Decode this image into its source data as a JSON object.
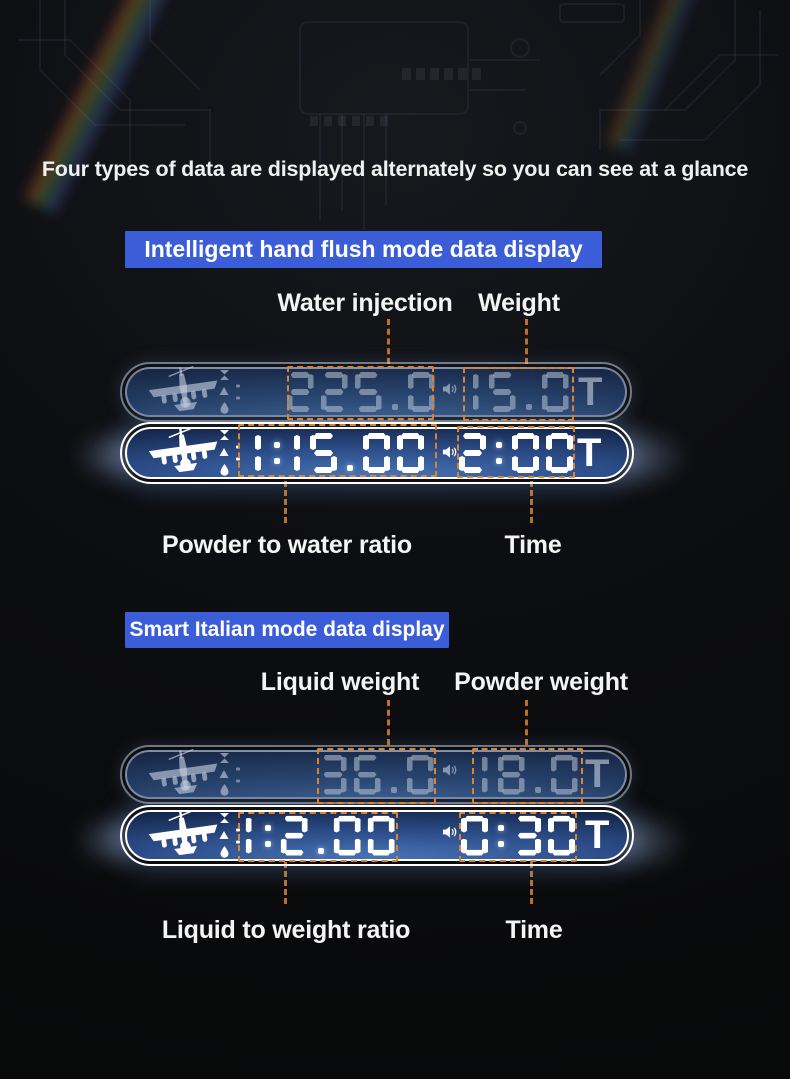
{
  "headline": "Four types of data are displayed alternately so you can see at a glance",
  "sections": [
    {
      "banner": "Intelligent hand flush mode data display",
      "labels_top": [
        {
          "text": "Water injection"
        },
        {
          "text": "Weight"
        }
      ],
      "labels_bottom": [
        {
          "text": "Powder to water ratio"
        },
        {
          "text": "Time"
        }
      ],
      "displays": [
        {
          "state": "dim",
          "left_value": "225.0",
          "right_value": "15.0",
          "unit": "T"
        },
        {
          "state": "bright",
          "left_value": "1:15.00",
          "right_value": "2:00",
          "unit": "T"
        }
      ]
    },
    {
      "banner": "Smart Italian mode data display",
      "labels_top": [
        {
          "text": "Liquid weight"
        },
        {
          "text": "Powder weight"
        }
      ],
      "labels_bottom": [
        {
          "text": "Liquid to weight ratio"
        },
        {
          "text": "Time"
        }
      ],
      "displays": [
        {
          "state": "dim",
          "left_value": "36.0",
          "right_value": "18.0",
          "unit": "T"
        },
        {
          "state": "bright",
          "left_value": "1:2.00",
          "right_value": "0:30",
          "unit": "T"
        }
      ]
    }
  ],
  "icons": {
    "airplane": "airplane-icon",
    "speaker": "speaker-icon",
    "hourglass": "hourglass-icon",
    "triangle_up": "triangle-up-icon",
    "droplet": "droplet-icon"
  },
  "colors": {
    "banner_blue": "#3b5ed8",
    "highlight_orange": "#db8330",
    "connector_orange": "#bd6f28",
    "display_glow_blue": "#4773b5",
    "background": "#0d0e11"
  }
}
